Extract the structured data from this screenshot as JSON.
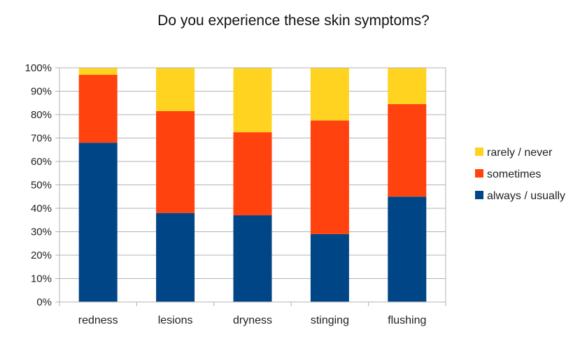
{
  "chart_data": {
    "type": "bar",
    "stacked": true,
    "title": "Do you experience these skin symptoms?",
    "categories": [
      "redness",
      "lesions",
      "dryness",
      "stinging",
      "flushing"
    ],
    "series": [
      {
        "name": "always / usually",
        "color": "#004586",
        "values": [
          68,
          38,
          37,
          29,
          45
        ]
      },
      {
        "name": "sometimes",
        "color": "#ff420e",
        "values": [
          29,
          43.5,
          35.5,
          48.5,
          39.5
        ]
      },
      {
        "name": "rarely / never",
        "color": "#ffd320",
        "values": [
          3,
          18.5,
          27.5,
          22.5,
          15.5
        ]
      }
    ],
    "ylim": [
      0,
      100
    ],
    "yticks": [
      "0%",
      "10%",
      "20%",
      "30%",
      "40%",
      "50%",
      "60%",
      "70%",
      "80%",
      "90%",
      "100%"
    ],
    "grid": true,
    "legend": "right",
    "legend_order": [
      "rarely / never",
      "sometimes",
      "always / usually"
    ]
  }
}
